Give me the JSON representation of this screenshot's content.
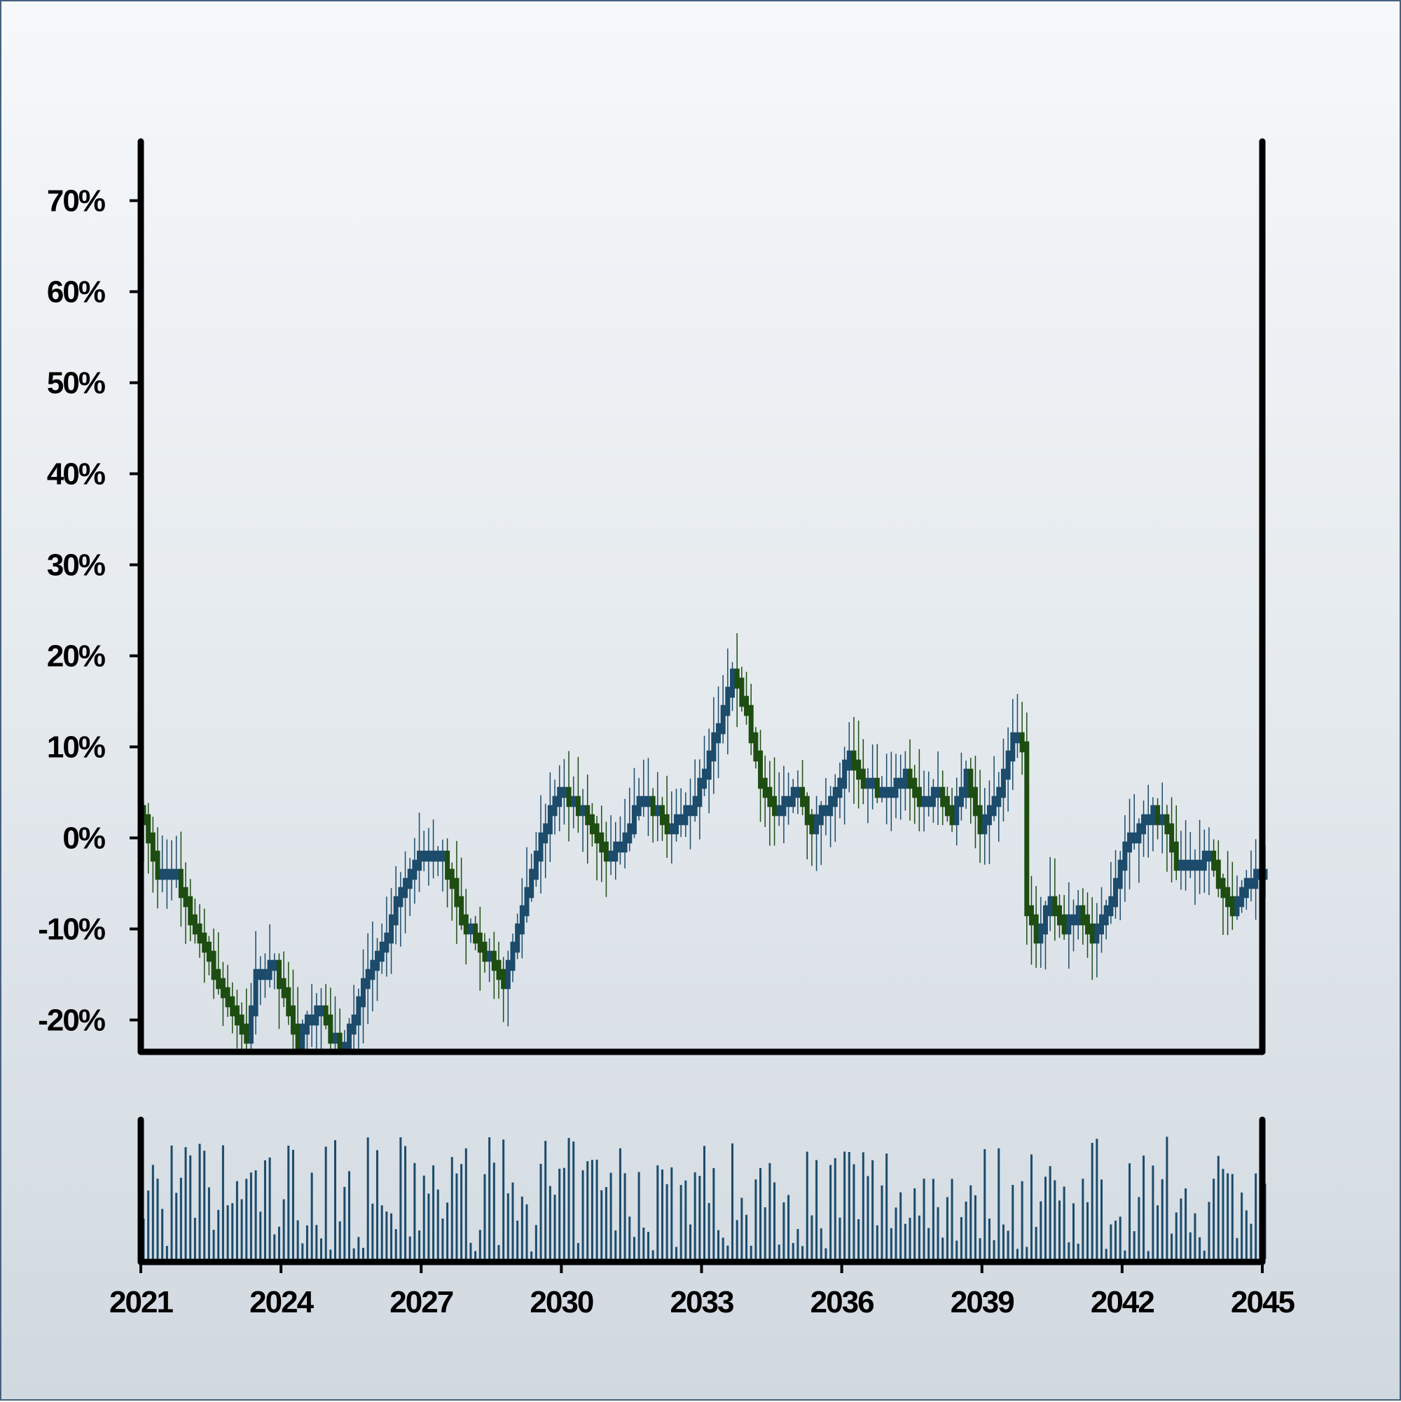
{
  "chart_data": {
    "type": "candlestick",
    "title": "",
    "xlabel": "",
    "ylabel": "",
    "x_ticks": [
      "2021",
      "2024",
      "2027",
      "2030",
      "2033",
      "2036",
      "2039",
      "2042",
      "2045"
    ],
    "y_ticks": [
      "-20%",
      "-10%",
      "0%",
      "10%",
      "20%",
      "30%",
      "40%",
      "50%",
      "60%",
      "70%"
    ],
    "y_tick_values": [
      -20,
      -10,
      0,
      10,
      20,
      30,
      40,
      50,
      60,
      70
    ],
    "xlim": [
      2021,
      2045
    ],
    "ylim": [
      -23.5,
      76.5
    ],
    "x_step_years": 0.1,
    "price_close_path": [
      {
        "x": 2021.0,
        "y": 3
      },
      {
        "x": 2021.2,
        "y": 0
      },
      {
        "x": 2021.4,
        "y": -4
      },
      {
        "x": 2021.8,
        "y": -4
      },
      {
        "x": 2022.1,
        "y": -9
      },
      {
        "x": 2022.4,
        "y": -12
      },
      {
        "x": 2022.7,
        "y": -16
      },
      {
        "x": 2023.0,
        "y": -19
      },
      {
        "x": 2023.3,
        "y": -22
      },
      {
        "x": 2023.5,
        "y": -15
      },
      {
        "x": 2023.9,
        "y": -14
      },
      {
        "x": 2024.2,
        "y": -19
      },
      {
        "x": 2024.4,
        "y": -23
      },
      {
        "x": 2024.6,
        "y": -20
      },
      {
        "x": 2024.9,
        "y": -19
      },
      {
        "x": 2025.1,
        "y": -22
      },
      {
        "x": 2025.4,
        "y": -23
      },
      {
        "x": 2025.8,
        "y": -16
      },
      {
        "x": 2026.2,
        "y": -12
      },
      {
        "x": 2026.6,
        "y": -6
      },
      {
        "x": 2026.9,
        "y": -3
      },
      {
        "x": 2027.1,
        "y": -2
      },
      {
        "x": 2027.5,
        "y": -2
      },
      {
        "x": 2027.9,
        "y": -9
      },
      {
        "x": 2028.3,
        "y": -12
      },
      {
        "x": 2028.6,
        "y": -14
      },
      {
        "x": 2028.8,
        "y": -16
      },
      {
        "x": 2029.2,
        "y": -8
      },
      {
        "x": 2029.6,
        "y": 0
      },
      {
        "x": 2030.0,
        "y": 5
      },
      {
        "x": 2030.3,
        "y": 4
      },
      {
        "x": 2030.7,
        "y": 1
      },
      {
        "x": 2031.0,
        "y": -2
      },
      {
        "x": 2031.4,
        "y": 0
      },
      {
        "x": 2031.7,
        "y": 4
      },
      {
        "x": 2032.1,
        "y": 3
      },
      {
        "x": 2032.3,
        "y": 1
      },
      {
        "x": 2032.8,
        "y": 3
      },
      {
        "x": 2033.2,
        "y": 9
      },
      {
        "x": 2033.5,
        "y": 14
      },
      {
        "x": 2033.7,
        "y": 18
      },
      {
        "x": 2034.0,
        "y": 14
      },
      {
        "x": 2034.3,
        "y": 6
      },
      {
        "x": 2034.6,
        "y": 3
      },
      {
        "x": 2035.1,
        "y": 5
      },
      {
        "x": 2035.4,
        "y": 1
      },
      {
        "x": 2035.9,
        "y": 5
      },
      {
        "x": 2036.2,
        "y": 9
      },
      {
        "x": 2036.5,
        "y": 6
      },
      {
        "x": 2037.0,
        "y": 5
      },
      {
        "x": 2037.4,
        "y": 7
      },
      {
        "x": 2037.7,
        "y": 4
      },
      {
        "x": 2038.1,
        "y": 5
      },
      {
        "x": 2038.4,
        "y": 2
      },
      {
        "x": 2038.7,
        "y": 7
      },
      {
        "x": 2039.0,
        "y": 1
      },
      {
        "x": 2039.4,
        "y": 5
      },
      {
        "x": 2039.7,
        "y": 11
      },
      {
        "x": 2039.9,
        "y": 10
      },
      {
        "x": 2040.0,
        "y": -8
      },
      {
        "x": 2040.2,
        "y": -11
      },
      {
        "x": 2040.5,
        "y": -7
      },
      {
        "x": 2040.8,
        "y": -10
      },
      {
        "x": 2041.1,
        "y": -8
      },
      {
        "x": 2041.4,
        "y": -11
      },
      {
        "x": 2041.8,
        "y": -7
      },
      {
        "x": 2042.1,
        "y": -1
      },
      {
        "x": 2042.4,
        "y": 1
      },
      {
        "x": 2042.7,
        "y": 3
      },
      {
        "x": 2043.0,
        "y": 1
      },
      {
        "x": 2043.2,
        "y": -3
      },
      {
        "x": 2043.6,
        "y": -3
      },
      {
        "x": 2043.9,
        "y": -2
      },
      {
        "x": 2044.2,
        "y": -6
      },
      {
        "x": 2044.4,
        "y": -8
      },
      {
        "x": 2044.7,
        "y": -5
      },
      {
        "x": 2045.0,
        "y": -4
      }
    ],
    "up_color": "#1c4b6b",
    "down_color": "#1e4d12",
    "volume_color": "#1c4b6b",
    "grid": false,
    "legend": "none"
  }
}
